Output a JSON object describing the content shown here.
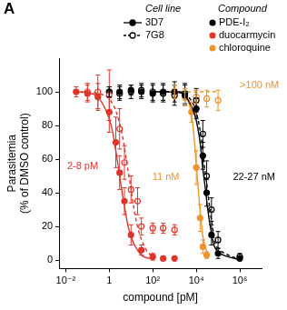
{
  "chart_data": {
    "type": "scatter",
    "panel_label": "A",
    "xlabel": "compound [pM]",
    "ylabel": [
      "Parasitemia",
      "(% of DMSO control)"
    ],
    "log": "x",
    "grid": false,
    "legend": "upper right",
    "xlim": [
      0.005,
      10000000
    ],
    "xticks": [
      {
        "value": 0.01,
        "label": "10⁻²"
      },
      1,
      {
        "value": 100,
        "label": "10²"
      },
      {
        "value": 10000,
        "label": "10⁴"
      },
      {
        "value": 1000000,
        "label": "10⁶"
      }
    ],
    "ylim": [
      -5,
      120
    ],
    "yticks": [
      0,
      20,
      40,
      60,
      80,
      100
    ],
    "cell_line_title": "Cell line",
    "compound_title": "Compound",
    "cell_lines": [
      {
        "name": "3D7",
        "line_style": "solid",
        "marker": "filled_circle"
      },
      {
        "name": "7G8",
        "line_style": "dashed",
        "marker": "open_circle"
      }
    ],
    "compounds": [
      {
        "name": "PDE-I₂",
        "color": "#000000"
      },
      {
        "name": "duocarmycin",
        "color": "#e0352b"
      },
      {
        "name": "chloroquine",
        "color": "#f0922b"
      }
    ],
    "series": [
      {
        "cell_line": "3D7",
        "compound": "duocarmycin",
        "x": [
          0.03,
          0.1,
          0.3,
          1,
          2,
          3,
          5,
          10,
          30,
          100,
          300,
          1000
        ],
        "values": [
          100,
          99,
          97,
          88,
          70,
          52,
          35,
          15,
          6,
          2,
          1,
          1
        ],
        "errors": [
          3,
          5,
          8,
          12,
          15,
          10,
          8,
          6,
          3,
          2,
          1,
          1
        ],
        "fit_x": [
          0.03,
          0.1,
          0.3,
          1,
          2,
          3,
          5,
          10,
          30,
          100
        ],
        "fit_values": [
          100,
          99.5,
          97,
          84,
          65,
          50,
          32,
          14,
          3,
          0.5
        ]
      },
      {
        "cell_line": "7G8",
        "compound": "duocarmycin",
        "x": [
          0.1,
          0.3,
          1,
          3,
          5,
          10,
          20,
          30,
          100,
          300,
          1000
        ],
        "values": [
          100,
          100,
          98,
          78,
          58,
          42,
          35,
          20,
          19,
          19,
          18
        ],
        "errors": [
          5,
          10,
          15,
          12,
          10,
          8,
          8,
          5,
          3,
          3,
          3
        ],
        "fit_x": [
          0.05,
          0.3,
          1,
          3,
          8,
          20,
          50,
          100
        ],
        "fit_values": [
          100,
          99,
          96,
          81,
          50,
          20,
          6,
          2
        ]
      },
      {
        "cell_line": "3D7",
        "compound": "PDE-I₂",
        "x": [
          1,
          3,
          10,
          30,
          100,
          300,
          1000,
          3000,
          10000,
          20000,
          30000,
          50000,
          100000,
          1000000
        ],
        "values": [
          100,
          100,
          101,
          100,
          99,
          100,
          100,
          98,
          90,
          62,
          40,
          15,
          4,
          1
        ],
        "errors": [
          3,
          4,
          3,
          4,
          5,
          5,
          6,
          6,
          6,
          8,
          8,
          6,
          3,
          1
        ],
        "fit_x": [
          100,
          1000,
          3000,
          10000,
          22000,
          50000,
          100000,
          1000000
        ],
        "fit_values": [
          100,
          99.8,
          98,
          83,
          50,
          16,
          5,
          0
        ]
      },
      {
        "cell_line": "7G8",
        "compound": "PDE-I₂",
        "x": [
          1,
          3,
          10,
          30,
          100,
          300,
          1000,
          3000,
          10000,
          20000,
          30000,
          50000,
          100000,
          1000000
        ],
        "values": [
          100,
          99,
          100,
          101,
          100,
          99,
          98,
          99,
          95,
          75,
          50,
          30,
          12,
          2
        ],
        "errors": [
          3,
          4,
          4,
          4,
          5,
          5,
          6,
          6,
          7,
          8,
          9,
          7,
          5,
          2
        ],
        "fit_x": [
          100,
          1000,
          3000,
          10000,
          27000,
          60000,
          100000,
          1000000
        ],
        "fit_values": [
          100,
          100,
          99,
          88,
          50,
          17,
          7,
          0
        ]
      },
      {
        "cell_line": "3D7",
        "compound": "chloroquine",
        "x": [
          1000,
          3000,
          6000,
          10000,
          15000,
          20000,
          30000
        ],
        "values": [
          100,
          97,
          88,
          55,
          25,
          8,
          3
        ],
        "errors": [
          4,
          5,
          6,
          10,
          8,
          4,
          2
        ],
        "fit_x": [
          1000,
          3000,
          6000,
          11000,
          20000,
          30000
        ],
        "fit_values": [
          100,
          98,
          86,
          50,
          14,
          5
        ]
      },
      {
        "cell_line": "7G8",
        "compound": "chloroquine",
        "x": [
          1000,
          3000,
          10000,
          30000,
          100000
        ],
        "values": [
          99,
          98,
          97,
          96,
          95
        ],
        "errors": [
          3,
          3,
          4,
          5,
          6
        ],
        "fit_x": [
          1000,
          100000
        ],
        "fit_values": [
          100,
          100
        ]
      }
    ],
    "annotations": [
      {
        "text": "2-8 pM",
        "x": 0.06,
        "y": 56,
        "compound": "duocarmycin"
      },
      {
        "text": "11 nM",
        "x": 400,
        "y": 49,
        "compound": "chloroquine"
      },
      {
        "text": "22-27 nM",
        "x": 4500000,
        "y": 49,
        "compound": "PDE-I₂"
      },
      {
        "text": ">100 nM",
        "x": 8000000,
        "y": 104,
        "compound": "chloroquine"
      }
    ]
  }
}
